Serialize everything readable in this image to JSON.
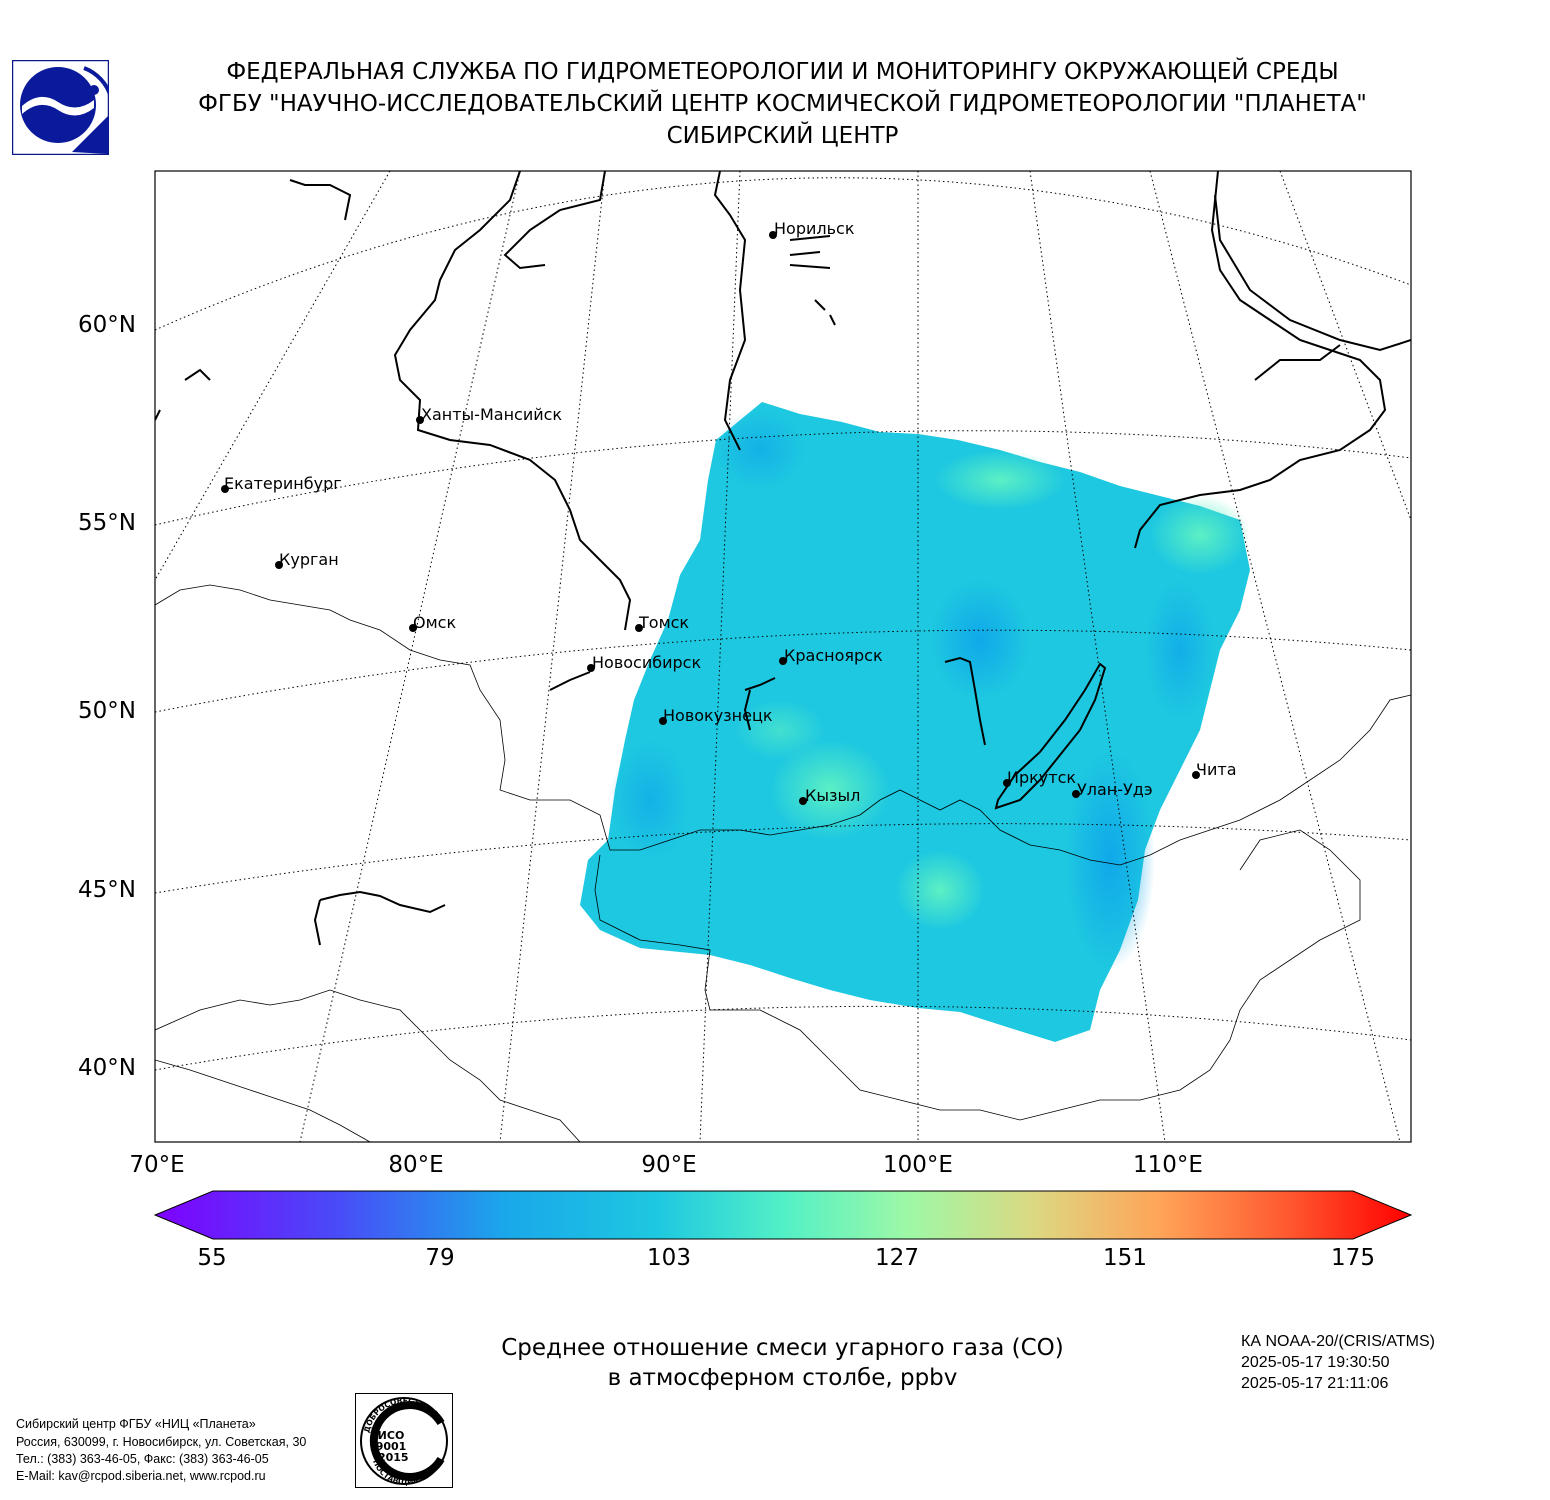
{
  "header": {
    "line1": "ФЕДЕРАЛЬНАЯ СЛУЖБА ПО ГИДРОМЕТЕОРОЛОГИИ И МОНИТОРИНГУ ОКРУЖАЮЩЕЙ СРЕДЫ",
    "line2": "ФГБУ \"НАУЧНО-ИССЛЕДОВАТЕЛЬСКИЙ ЦЕНТР КОСМИЧЕСКОЙ ГИДРОМЕТЕОРОЛОГИИ \"ПЛАНЕТА\"",
    "line3": "СИБИРСКИЙ ЦЕНТР"
  },
  "map": {
    "lat_labels": [
      "60°N",
      "55°N",
      "50°N",
      "45°N",
      "40°N"
    ],
    "lon_labels": [
      "70°E",
      "80°E",
      "90°E",
      "100°E",
      "110°E"
    ],
    "cities": [
      {
        "name": "Норильск"
      },
      {
        "name": "Ханты-Мансийск"
      },
      {
        "name": "Екатеринбург"
      },
      {
        "name": "Курган"
      },
      {
        "name": "Омск"
      },
      {
        "name": "Томск"
      },
      {
        "name": "Новосибирск"
      },
      {
        "name": "Красноярск"
      },
      {
        "name": "Новокузнецк"
      },
      {
        "name": "Кызыл"
      },
      {
        "name": "Иркутск"
      },
      {
        "name": "Улан-Удэ"
      },
      {
        "name": "Чита"
      }
    ],
    "colors": {
      "field_main": "#1ec8e0",
      "field_high": "#4ee8c8",
      "field_low": "#12b4e8"
    }
  },
  "colorbar": {
    "min": 55,
    "max": 175,
    "ticks": [
      "55",
      "79",
      "103",
      "127",
      "151",
      "175"
    ],
    "colors": [
      "#7f00ff",
      "#2f7ef6",
      "#1ec8e0",
      "#58f2c0",
      "#b2f29a",
      "#ffb360",
      "#ff3a1e",
      "#ff0000"
    ]
  },
  "caption": {
    "line1": "Среднее отношение смеси угарного газа (CO)",
    "line2": "в атмосферном столбе, ppbv"
  },
  "satellite": {
    "name": "КА NOAA-20/(CRIS/ATMS)",
    "time_start": "2025-05-17 19:30:50",
    "time_end": "2025-05-17 21:11:06"
  },
  "footer": {
    "org": "Сибирский центр ФГБУ «НИЦ «Планета»",
    "address": "Россия, 630099, г. Новосибирск, ул. Советская, 30",
    "phone": "Тел.: (383) 363-46-05, Факс: (383) 363-46-05",
    "email": "E-Mail: kav@rcpod.siberia.net, www.rcpod.ru"
  },
  "iso_badge": {
    "top": "ДОБРОСОВЕСТНЫЙ",
    "mid1": "ИСО",
    "mid2": "9001",
    "mid3": "-2015",
    "bottom": "ПОСТАВЩИК"
  }
}
